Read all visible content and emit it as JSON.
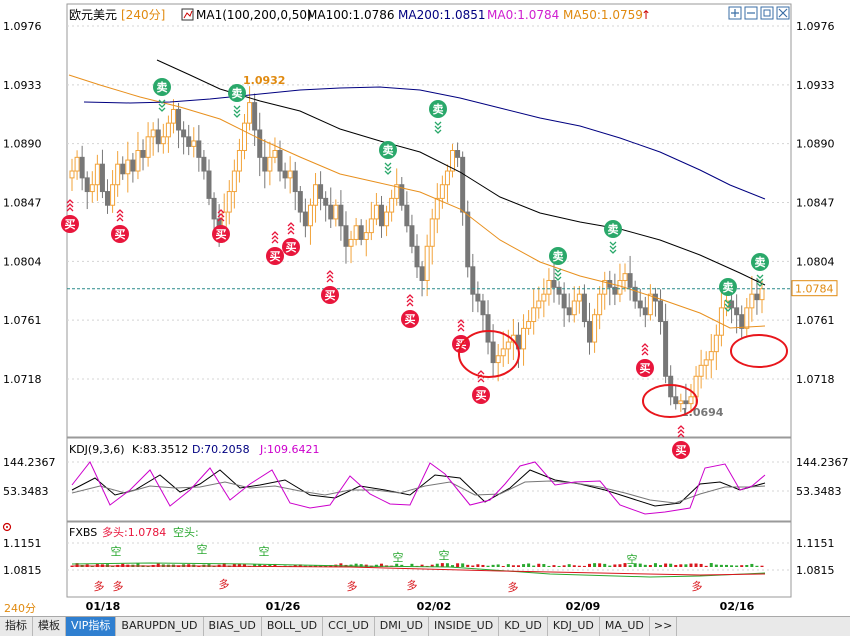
{
  "header": {
    "symbol": "欧元美元",
    "period": "[240分]",
    "ma1_label": "MA1(100,200,0,50)",
    "ma100_label": "MA100:1.0786",
    "ma200_label": "MA200:1.0851",
    "ma0_label": "MA0:1.0784",
    "ma50_label": "MA50:1.0759"
  },
  "main_axis": {
    "ticks": [
      "1.0976",
      "1.0933",
      "1.0890",
      "1.0847",
      "1.0804",
      "1.0761",
      "1.0718"
    ],
    "current_price_label": "1.0784",
    "high_label": "1.0932",
    "low_label": "1.0694"
  },
  "kdj": {
    "label": "KDJ(9,3,6)",
    "k_label": "K:83.3512",
    "d_label": "D:70.2058",
    "j_label": "J:109.6421",
    "ticks": [
      "144.2367",
      "53.3483"
    ]
  },
  "fxbs": {
    "label": "FXBS",
    "long_label": "多头:1.0784",
    "short_label": "空头:",
    "ticks": [
      "1.1151",
      "1.0815"
    ],
    "duo_text": "多",
    "kong_text": "空"
  },
  "signals": {
    "buy_text": "买",
    "sell_text": "卖"
  },
  "date_axis": [
    "01/18",
    "01/26",
    "02/02",
    "02/09",
    "02/16"
  ],
  "period_button": "240分",
  "tabs": [
    "指标",
    "模板",
    "VIP指标",
    "BARUPDN_UD",
    "BIAS_UD",
    "BOLL_UD",
    "CCI_UD",
    "DMI_UD",
    "INSIDE_UD",
    "KD_UD",
    "KDJ_UD",
    "MA_UD",
    ">>"
  ],
  "colors": {
    "up": "#f2a33a",
    "down": "#777777",
    "ma100": "#000000",
    "ma200": "#000080",
    "ma50": "#e8901e",
    "buy": "#e8163c",
    "sell": "#2aa86a",
    "circle": "#e8161c",
    "kdj_k": "#000000",
    "kdj_d": "#777777",
    "kdj_j": "#cc00cc",
    "dashed": "#2a8a8a"
  },
  "chart_data": [
    {
      "type": "candlestick",
      "title": "欧元美元 [240分]",
      "x_labels": [
        "01/18",
        "01/26",
        "02/02",
        "02/09",
        "02/16"
      ],
      "ylim": [
        1.0675,
        1.0985
      ],
      "ticks": [
        1.0976,
        1.0933,
        1.089,
        1.0847,
        1.0804,
        1.0761,
        1.0718
      ],
      "annotations": {
        "high": 1.0932,
        "low": 1.0694,
        "last": 1.0784
      },
      "series": [
        {
          "name": "MA100",
          "last": 1.0786
        },
        {
          "name": "MA200",
          "last": 1.0851
        },
        {
          "name": "MA50",
          "last": 1.0759
        }
      ],
      "close_approx": [
        1.087,
        1.088,
        1.0865,
        1.0855,
        1.086,
        1.0875,
        1.0855,
        1.0845,
        1.086,
        1.0875,
        1.0868,
        1.0878,
        1.087,
        1.0885,
        1.088,
        1.0895,
        1.09,
        1.089,
        1.0895,
        1.0905,
        1.0915,
        1.09,
        1.0895,
        1.0888,
        1.0892,
        1.088,
        1.087,
        1.085,
        1.0835,
        1.0825,
        1.084,
        1.0855,
        1.087,
        1.0885,
        1.0905,
        1.092,
        1.09,
        1.088,
        1.087,
        1.088,
        1.0885,
        1.087,
        1.0865,
        1.087,
        1.0855,
        1.084,
        1.083,
        1.0845,
        1.086,
        1.085,
        1.0845,
        1.0835,
        1.0845,
        1.083,
        1.0815,
        1.082,
        1.083,
        1.082,
        1.0825,
        1.0835,
        1.0845,
        1.083,
        1.084,
        1.085,
        1.086,
        1.0845,
        1.083,
        1.0815,
        1.08,
        1.079,
        1.0815,
        1.0835,
        1.085,
        1.086,
        1.087,
        1.0885,
        1.088,
        1.084,
        1.08,
        1.078,
        1.0775,
        1.0765,
        1.0745,
        1.073,
        1.0735,
        1.074,
        1.0745,
        1.075,
        1.074,
        1.0755,
        1.076,
        1.077,
        1.0775,
        1.078,
        1.079,
        1.0785,
        1.078,
        1.077,
        1.0765,
        1.0775,
        1.078,
        1.076,
        1.0745,
        1.0765,
        1.078,
        1.079,
        1.0785,
        1.078,
        1.079,
        1.0795,
        1.0785,
        1.0775,
        1.077,
        1.0765,
        1.078,
        1.0775,
        1.076,
        1.072,
        1.0705,
        1.07,
        1.0702,
        1.07,
        1.0705,
        1.072,
        1.0728,
        1.0732,
        1.0738,
        1.075,
        1.077,
        1.0775,
        1.077,
        1.0765,
        1.0755,
        1.077,
        1.078,
        1.0776,
        1.0784
      ]
    },
    {
      "type": "line",
      "title": "KDJ(9,3,6)",
      "ticks": [
        144.2367,
        53.3483
      ],
      "series": [
        {
          "name": "K",
          "last": 83.3512
        },
        {
          "name": "D",
          "last": 70.2058
        },
        {
          "name": "J",
          "last": 109.6421
        }
      ]
    },
    {
      "type": "line",
      "title": "FXBS",
      "ticks": [
        1.1151,
        1.0815
      ],
      "series": [
        {
          "name": "多头",
          "last": 1.0784
        },
        {
          "name": "空头",
          "last": null
        }
      ]
    }
  ]
}
